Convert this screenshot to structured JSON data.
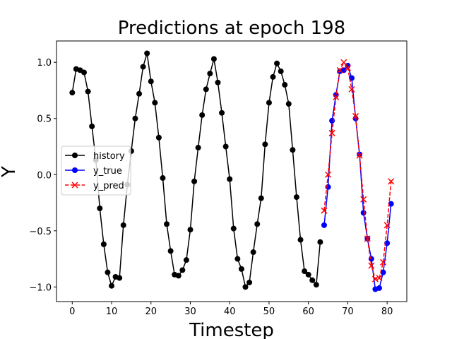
{
  "chart_data": {
    "type": "line",
    "title": "Predictions at epoch 198",
    "xlabel": "Timestep",
    "ylabel": "Y",
    "xlim": [
      -4,
      85
    ],
    "ylim": [
      -1.13,
      1.19
    ],
    "xticks": [
      0,
      10,
      20,
      30,
      40,
      50,
      60,
      70,
      80
    ],
    "yticks": [
      -1.0,
      -0.5,
      0.0,
      0.5,
      1.0
    ],
    "ytick_labels": [
      "−1.0",
      "−0.5",
      "0.0",
      "0.5",
      "1.0"
    ],
    "grid": false,
    "legend_position": "center-left",
    "series": [
      {
        "name": "history",
        "color": "#000000",
        "marker": "circle",
        "linestyle": "solid",
        "x": [
          0,
          1,
          2,
          3,
          4,
          5,
          6,
          7,
          8,
          9,
          10,
          11,
          12,
          13,
          14,
          15,
          16,
          17,
          18,
          19,
          20,
          21,
          22,
          23,
          24,
          25,
          26,
          27,
          28,
          29,
          30,
          31,
          32,
          33,
          34,
          35,
          36,
          37,
          38,
          39,
          40,
          41,
          42,
          43,
          44,
          45,
          46,
          47,
          48,
          49,
          50,
          51,
          52,
          53,
          54,
          55,
          56,
          57,
          58,
          59,
          60,
          61,
          62,
          63
        ],
        "y": [
          0.73,
          0.94,
          0.93,
          0.91,
          0.74,
          0.43,
          0.13,
          -0.3,
          -0.62,
          -0.87,
          -0.99,
          -0.91,
          -0.92,
          -0.45,
          -0.09,
          0.21,
          0.5,
          0.72,
          0.96,
          1.08,
          0.83,
          0.64,
          0.33,
          -0.03,
          -0.44,
          -0.68,
          -0.89,
          -0.9,
          -0.85,
          -0.76,
          -0.49,
          -0.06,
          0.24,
          0.53,
          0.76,
          0.9,
          1.03,
          0.82,
          0.55,
          0.25,
          -0.04,
          -0.48,
          -0.75,
          -0.84,
          -1.0,
          -0.96,
          -0.69,
          -0.44,
          -0.21,
          0.27,
          0.64,
          0.87,
          0.99,
          0.92,
          0.8,
          0.63,
          0.22,
          -0.2,
          -0.58,
          -0.86,
          -0.89,
          -0.94,
          -0.98,
          -0.6
        ]
      },
      {
        "name": "y_true",
        "color": "#0000ff",
        "marker": "circle",
        "linestyle": "solid",
        "x": [
          64,
          65,
          66,
          67,
          68,
          69,
          70,
          71,
          72,
          73,
          74,
          75,
          76,
          77,
          78,
          79,
          80,
          81
        ],
        "y": [
          -0.45,
          -0.11,
          0.48,
          0.71,
          0.92,
          0.93,
          0.97,
          0.86,
          0.5,
          0.18,
          -0.34,
          -0.57,
          -0.75,
          -1.02,
          -1.01,
          -0.87,
          -0.61,
          -0.26
        ]
      },
      {
        "name": "y_pred",
        "color": "#ff0000",
        "marker": "x",
        "linestyle": "dashed",
        "x": [
          64,
          65,
          66,
          67,
          68,
          69,
          70,
          71,
          72,
          73,
          74,
          75,
          76,
          77,
          78,
          79,
          80,
          81
        ],
        "y": [
          -0.32,
          0.0,
          0.37,
          0.69,
          0.93,
          1.0,
          0.95,
          0.76,
          0.52,
          0.17,
          -0.22,
          -0.57,
          -0.81,
          -0.93,
          -0.92,
          -0.78,
          -0.45,
          -0.06
        ]
      }
    ]
  }
}
